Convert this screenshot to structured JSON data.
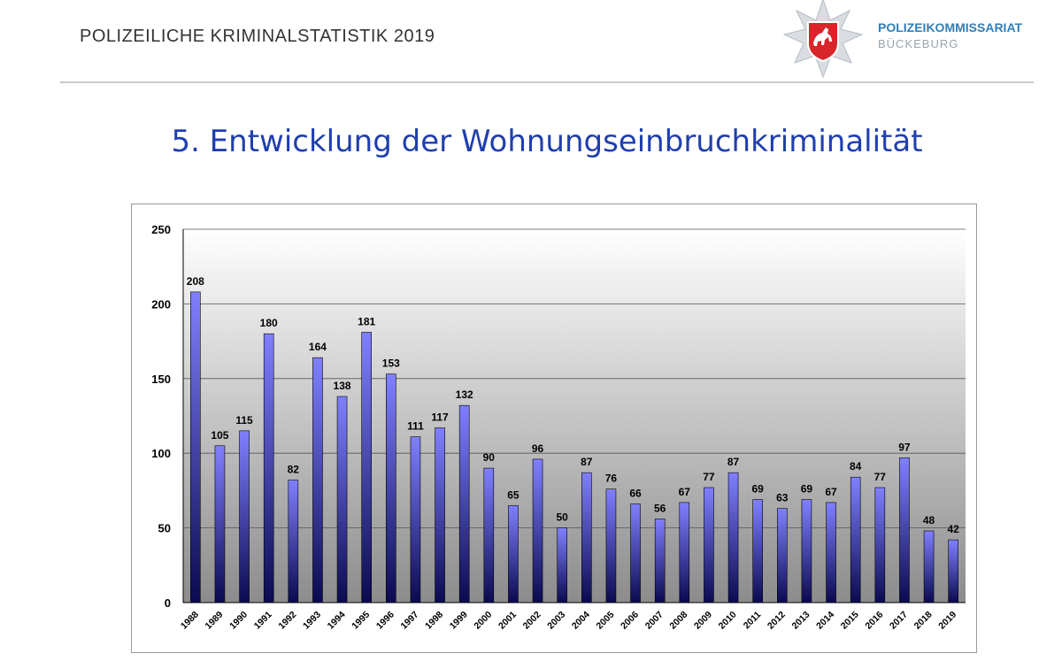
{
  "header": {
    "title": "POLIZEILICHE  KRIMINALSTATISTIK 2019",
    "org_name": "POLIZEIKOMMISSARIAT",
    "org_city": "BÜCKEBURG"
  },
  "page_title": "5. Entwicklung der Wohnungseinbruchkriminalität",
  "colors": {
    "title": "#1f3fae",
    "bar_top": "#8080ff",
    "bar_bottom": "#0a0a50",
    "org_name": "#2f7fb8",
    "logo_red": "#d8252a"
  },
  "chart_data": {
    "type": "bar",
    "categories": [
      "1988",
      "1989",
      "1990",
      "1991",
      "1992",
      "1993",
      "1994",
      "1995",
      "1996",
      "1997",
      "1998",
      "1999",
      "2000",
      "2001",
      "2002",
      "2003",
      "2004",
      "2005",
      "2006",
      "2007",
      "2008",
      "2009",
      "2010",
      "2011",
      "2012",
      "2013",
      "2014",
      "2015",
      "2016",
      "2017",
      "2018",
      "2019"
    ],
    "values": [
      208,
      105,
      115,
      180,
      82,
      164,
      138,
      181,
      153,
      111,
      117,
      132,
      90,
      65,
      96,
      50,
      87,
      76,
      66,
      56,
      67,
      77,
      87,
      69,
      63,
      69,
      67,
      84,
      77,
      97,
      48,
      42
    ],
    "title": "",
    "xlabel": "",
    "ylabel": "",
    "ylim": [
      0,
      250
    ],
    "yticks": [
      0,
      50,
      100,
      150,
      200,
      250
    ],
    "grid": true,
    "data_labels": true
  }
}
